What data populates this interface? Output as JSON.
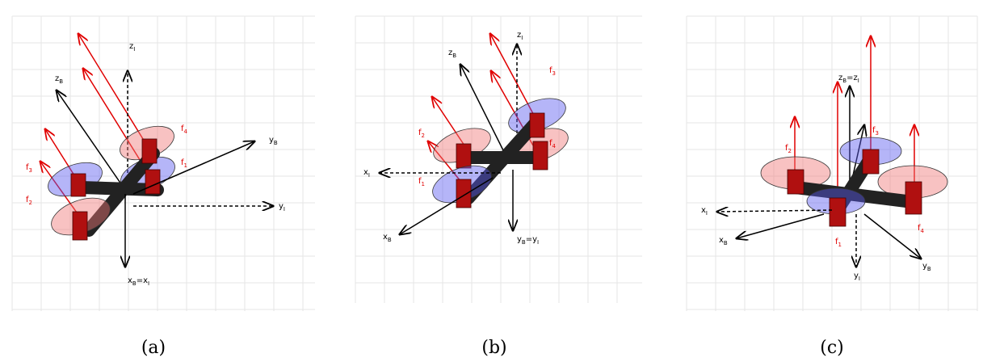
{
  "panels": [
    {
      "caption": "(a)",
      "labels": [
        [
          "z",
          "I"
        ],
        [
          "z",
          "B"
        ],
        [
          "y",
          "B"
        ],
        [
          "y",
          "I"
        ],
        [
          "x",
          "B",
          "=x",
          "I"
        ],
        [
          "f",
          "4"
        ],
        [
          "f",
          "1"
        ],
        [
          "f",
          "3"
        ],
        [
          "f",
          "2"
        ]
      ]
    },
    {
      "caption": "(b)",
      "labels": [
        [
          "z",
          "I"
        ],
        [
          "z",
          "B"
        ],
        [
          "f",
          "3"
        ],
        [
          "f",
          "2"
        ],
        [
          "f",
          "4"
        ],
        [
          "x",
          "I"
        ],
        [
          "f",
          "1"
        ],
        [
          "x",
          "B"
        ],
        [
          "y",
          "B",
          "=y",
          "I"
        ]
      ]
    },
    {
      "caption": "(c)",
      "labels": [
        [
          "z",
          "B",
          "=z",
          "I"
        ],
        [
          "f",
          "2"
        ],
        [
          "f",
          "3"
        ],
        [
          "x",
          "I"
        ],
        [
          "x",
          "B"
        ],
        [
          "f",
          "1"
        ],
        [
          "f",
          "4"
        ],
        [
          "y",
          "I"
        ],
        [
          "y",
          "B"
        ]
      ]
    }
  ]
}
